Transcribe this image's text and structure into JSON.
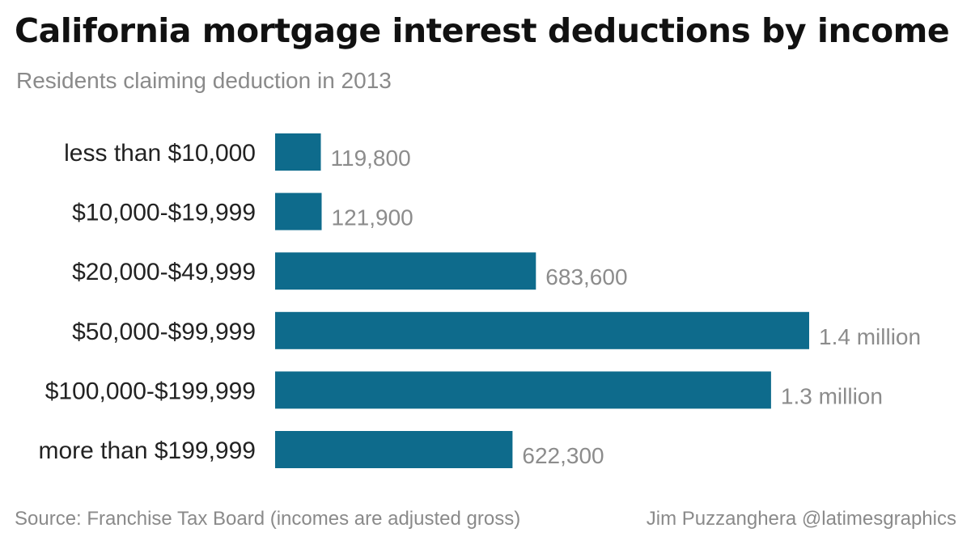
{
  "chart_data": {
    "type": "bar",
    "orientation": "horizontal",
    "title": "California mortgage interest deductions by income",
    "subtitle": "Residents claiming deduction in 2013",
    "categories": [
      "less than $10,000",
      "$10,000-$19,999",
      "$20,000-$49,999",
      "$50,000-$99,999",
      "$100,000-$199,999",
      "more than $199,999"
    ],
    "values": [
      119800,
      121900,
      683600,
      1400000,
      1300000,
      622300
    ],
    "data_labels": [
      "119,800",
      "121,900",
      "683,600",
      "1.4 million",
      "1.3 million",
      "622,300"
    ],
    "bar_color": "#0e6b8c",
    "xlim": [
      0,
      1400000
    ],
    "grid": false,
    "legend": "none"
  },
  "footer": {
    "source": "Source: Franchise Tax Board (incomes are adjusted gross)",
    "credit": "Jim Puzzanghera @latimesgraphics"
  }
}
